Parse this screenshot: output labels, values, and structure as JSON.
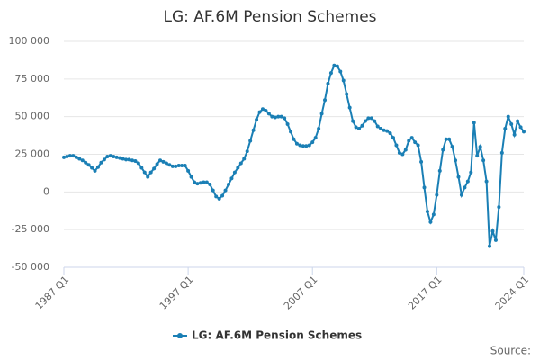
{
  "chart_data": {
    "type": "line",
    "title": "LG: AF.6M Pension Schemes",
    "categories": [
      "1987 Q1",
      null,
      null,
      null,
      null,
      null,
      null,
      null,
      null,
      null,
      null,
      null,
      null,
      null,
      null,
      null,
      null,
      null,
      null,
      null,
      null,
      null,
      null,
      null,
      null,
      null,
      null,
      null,
      null,
      null,
      null,
      null,
      null,
      null,
      null,
      null,
      null,
      null,
      null,
      null,
      "1997 Q1",
      null,
      null,
      null,
      null,
      null,
      null,
      null,
      null,
      null,
      null,
      null,
      null,
      null,
      null,
      null,
      null,
      null,
      null,
      null,
      null,
      null,
      null,
      null,
      null,
      null,
      null,
      null,
      null,
      null,
      null,
      null,
      null,
      null,
      null,
      null,
      null,
      null,
      null,
      null,
      "2007 Q1",
      null,
      null,
      null,
      null,
      null,
      null,
      null,
      null,
      null,
      null,
      null,
      null,
      null,
      null,
      null,
      null,
      null,
      null,
      null,
      null,
      null,
      null,
      null,
      null,
      null,
      null,
      null,
      null,
      null,
      null,
      null,
      null,
      null,
      null,
      null,
      null,
      null,
      null,
      null,
      "2017 Q1",
      null,
      null,
      null,
      null,
      null,
      null,
      null,
      null,
      null,
      null,
      null,
      null,
      null,
      null,
      null,
      null,
      null,
      null,
      null,
      null,
      null,
      null,
      null,
      null,
      null,
      null,
      null,
      "2024 Q1"
    ],
    "series": [
      {
        "name": "LG: AF.6M Pension Schemes",
        "color": "#1a7fb5",
        "values": [
          23000,
          23500,
          24000,
          24000,
          23000,
          22000,
          21000,
          19500,
          18000,
          16000,
          14000,
          16500,
          19500,
          21500,
          23500,
          24000,
          23500,
          23000,
          22500,
          22000,
          21500,
          21500,
          21000,
          20500,
          19000,
          16000,
          13000,
          10000,
          13000,
          15500,
          18500,
          21000,
          20000,
          19000,
          18000,
          17000,
          17000,
          17500,
          17500,
          17500,
          14000,
          10000,
          6500,
          5500,
          6000,
          6500,
          6500,
          5000,
          1000,
          -3000,
          -4500,
          -2500,
          1000,
          5000,
          9000,
          13000,
          16000,
          19000,
          22000,
          27000,
          34000,
          41000,
          48000,
          53000,
          55000,
          54000,
          52000,
          50000,
          49500,
          50000,
          50000,
          49000,
          45000,
          40000,
          35000,
          32000,
          31000,
          30500,
          30500,
          31000,
          33000,
          36000,
          42000,
          52000,
          61000,
          72000,
          79000,
          84000,
          83500,
          80000,
          74000,
          65000,
          56000,
          47000,
          43000,
          42000,
          44000,
          47000,
          49000,
          49000,
          47000,
          43500,
          42000,
          41000,
          40500,
          39000,
          36000,
          31000,
          26000,
          25000,
          28000,
          34000,
          36000,
          33000,
          31000,
          20000,
          3000,
          -13000,
          -20000,
          -15000,
          -2000,
          14000,
          28000,
          35000,
          35000,
          30000,
          21000,
          10000,
          -2000,
          3000,
          7000,
          13000,
          46000,
          24000,
          30000,
          21000,
          7000,
          -36000,
          -26000,
          -32000,
          -10000,
          26000,
          42000,
          50000,
          45000,
          38000,
          47000,
          43000,
          40000
        ]
      }
    ],
    "ylim": [
      -50000,
      100000
    ],
    "yticks": [
      {
        "value": -50000,
        "label": "-50 000"
      },
      {
        "value": -25000,
        "label": "-25 000"
      },
      0,
      {
        "value": 25000,
        "label": "25 000"
      },
      {
        "value": 50000,
        "label": "50 000"
      },
      {
        "value": 75000,
        "label": "75 000"
      },
      {
        "value": 100000,
        "label": "100 000"
      }
    ],
    "grid": true,
    "legend": "bottom",
    "source": "Source:"
  }
}
